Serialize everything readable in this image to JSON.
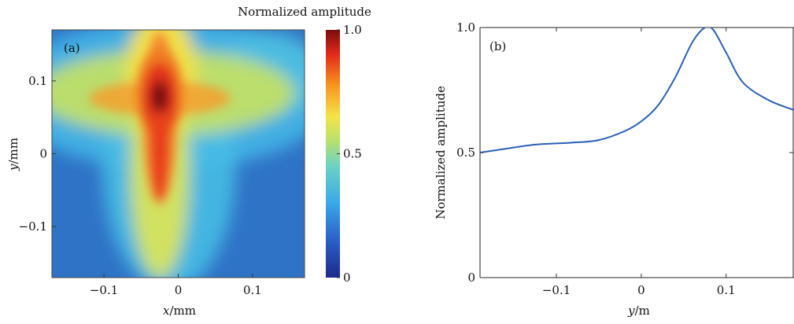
{
  "chart_data": [
    {
      "type": "heatmap",
      "panel_label": "(a)",
      "xlabel_var": "x",
      "xlabel_unit": "/mm",
      "ylabel_var": "y",
      "ylabel_unit": "/mm",
      "xlim": [
        -0.17,
        0.17
      ],
      "ylim": [
        -0.17,
        0.17
      ],
      "xticks": [
        {
          "v": -0.1,
          "label": "−0.1"
        },
        {
          "v": 0,
          "label": "0"
        },
        {
          "v": 0.1,
          "label": "0.1"
        }
      ],
      "yticks": [
        {
          "v": 0.1,
          "label": "0.1"
        },
        {
          "v": 0,
          "label": "0"
        },
        {
          "v": -0.1,
          "label": "−0.1"
        }
      ],
      "colorbar": {
        "title": "Normalized amplitude",
        "range": [
          0,
          1
        ],
        "ticks": [
          {
            "v": 1.0,
            "label": "1.0"
          },
          {
            "v": 0.5,
            "label": "0.5"
          },
          {
            "v": 0,
            "label": "0"
          }
        ],
        "colormap": "jet"
      },
      "peak": {
        "x": -0.025,
        "y": 0.08,
        "value": 1.0
      }
    },
    {
      "type": "line",
      "panel_label": "(b)",
      "xlabel_var": "y",
      "xlabel_unit": "/m",
      "ylabel": "Normalized amplitude",
      "xlim": [
        -0.19,
        0.18
      ],
      "ylim": [
        0,
        1.0
      ],
      "xticks": [
        {
          "v": -0.1,
          "label": "−0.1"
        },
        {
          "v": 0,
          "label": "0"
        },
        {
          "v": 0.1,
          "label": "0.1"
        }
      ],
      "yticks": [
        {
          "v": 1.0,
          "label": "1.0"
        },
        {
          "v": 0.5,
          "label": "0.5"
        },
        {
          "v": 0,
          "label": "0"
        }
      ],
      "color": "#2b5fb4",
      "x": [
        -0.19,
        -0.16,
        -0.13,
        -0.11,
        -0.08,
        -0.05,
        -0.02,
        0.0,
        0.02,
        0.04,
        0.06,
        0.075,
        0.085,
        0.1,
        0.12,
        0.15,
        0.18
      ],
      "y": [
        0.5,
        0.515,
        0.53,
        0.535,
        0.54,
        0.55,
        0.585,
        0.625,
        0.69,
        0.8,
        0.94,
        1.0,
        0.99,
        0.9,
        0.78,
        0.71,
        0.67
      ]
    }
  ]
}
